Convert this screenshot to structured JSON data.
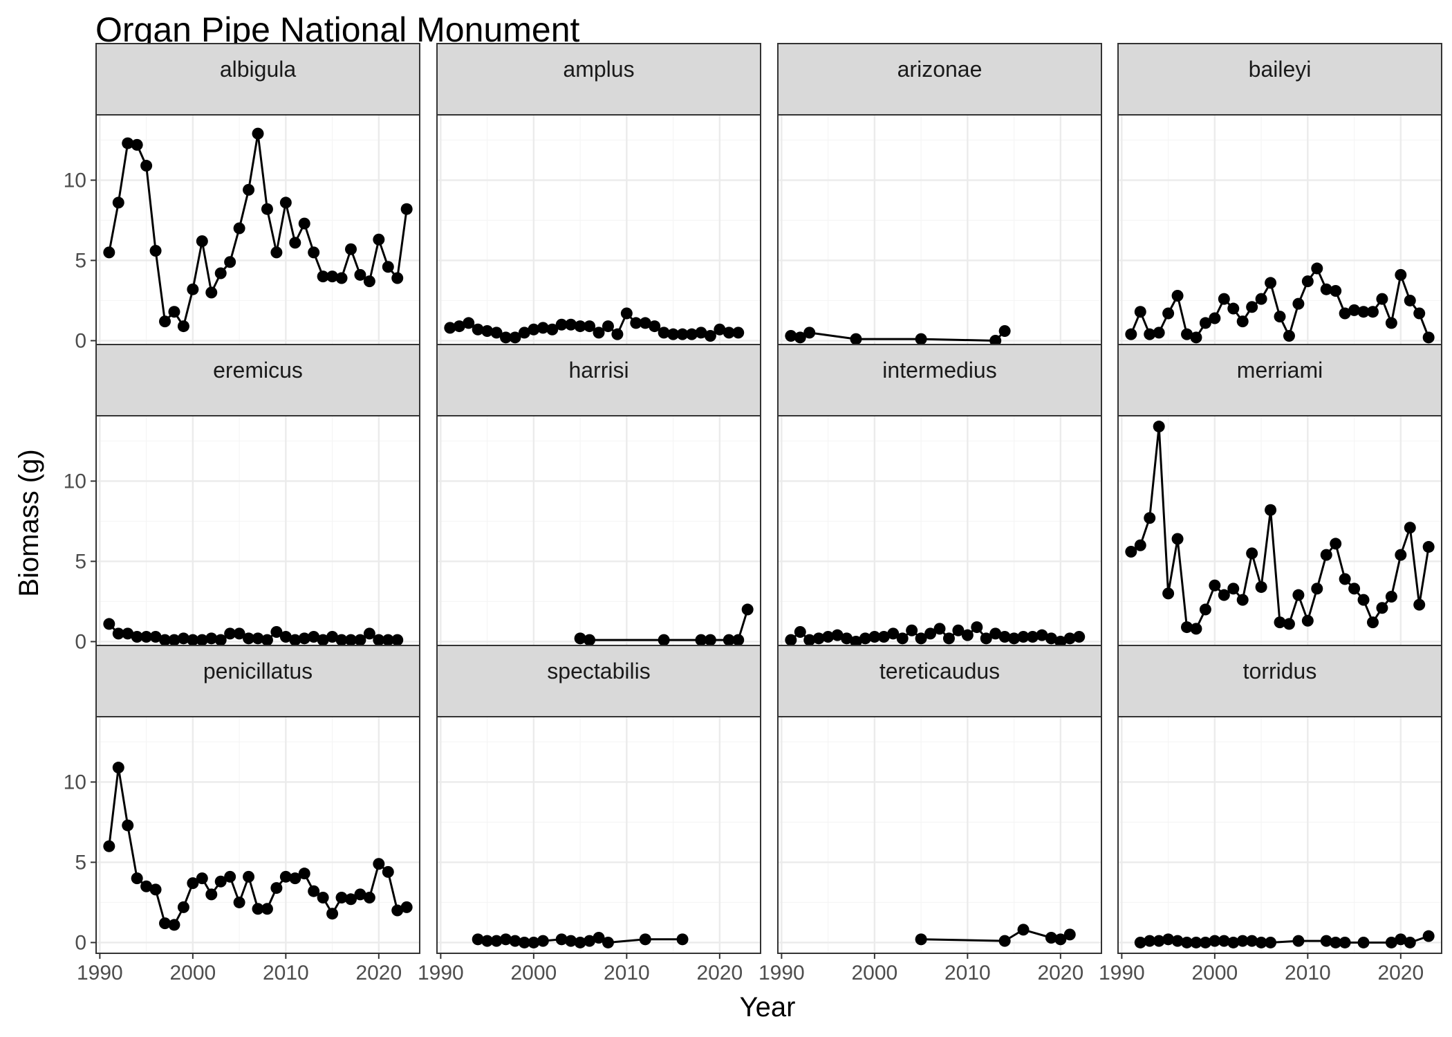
{
  "chart_data": {
    "type": "line",
    "title": "Organ Pipe National Monument",
    "xlabel": "Year",
    "ylabel": "Biomass (g)",
    "x_ticks": [
      1990,
      2000,
      2010,
      2020
    ],
    "y_ticks": [
      0,
      5,
      10
    ],
    "xlim": [
      1989.6,
      2024.4
    ],
    "ylim": [
      -0.67,
      14.07
    ],
    "grid": true,
    "markers": true,
    "colors": {
      "series": "#000000",
      "panel_border": "#333333",
      "strip_fill": "#d9d9d9",
      "grid_major": "#ebebeb",
      "grid_minor": "#f5f5f5",
      "tick_text": "#4d4d4d"
    },
    "facets": [
      {
        "name": "albigula",
        "x": [
          1991,
          1992,
          1993,
          1994,
          1995,
          1996,
          1997,
          1998,
          1999,
          2000,
          2001,
          2002,
          2003,
          2004,
          2005,
          2006,
          2007,
          2008,
          2009,
          2010,
          2011,
          2012,
          2013,
          2014,
          2015,
          2016,
          2017,
          2018,
          2019,
          2020,
          2021,
          2022,
          2023
        ],
        "y": [
          5.5,
          8.6,
          12.3,
          12.2,
          10.9,
          5.6,
          1.2,
          1.8,
          0.9,
          3.2,
          6.2,
          3.0,
          4.2,
          4.9,
          7.0,
          9.4,
          12.9,
          8.2,
          5.5,
          8.6,
          6.1,
          7.3,
          5.5,
          4.0,
          4.0,
          3.9,
          5.7,
          4.1,
          3.7,
          6.3,
          4.6,
          3.9,
          8.2
        ]
      },
      {
        "name": "amplus",
        "x": [
          1991,
          1992,
          1993,
          1994,
          1995,
          1996,
          1997,
          1998,
          1999,
          2000,
          2001,
          2002,
          2003,
          2004,
          2005,
          2006,
          2007,
          2008,
          2009,
          2010,
          2011,
          2012,
          2013,
          2014,
          2015,
          2016,
          2017,
          2018,
          2019,
          2020,
          2021,
          2022
        ],
        "y": [
          0.8,
          0.9,
          1.1,
          0.7,
          0.6,
          0.5,
          0.2,
          0.2,
          0.5,
          0.7,
          0.8,
          0.7,
          1.0,
          1.0,
          0.9,
          0.9,
          0.5,
          0.9,
          0.4,
          1.7,
          1.1,
          1.1,
          0.9,
          0.5,
          0.4,
          0.4,
          0.4,
          0.5,
          0.3,
          0.7,
          0.5,
          0.5
        ]
      },
      {
        "name": "arizonae",
        "x": [
          1991,
          1992,
          1993,
          1998,
          2005,
          2013,
          2014
        ],
        "y": [
          0.3,
          0.2,
          0.5,
          0.1,
          0.1,
          0.0,
          0.6
        ]
      },
      {
        "name": "baileyi",
        "x": [
          1991,
          1992,
          1993,
          1994,
          1995,
          1996,
          1997,
          1998,
          1999,
          2000,
          2001,
          2002,
          2003,
          2004,
          2005,
          2006,
          2007,
          2008,
          2009,
          2010,
          2011,
          2012,
          2013,
          2014,
          2015,
          2016,
          2017,
          2018,
          2019,
          2020,
          2021,
          2022,
          2023
        ],
        "y": [
          0.4,
          1.8,
          0.4,
          0.5,
          1.7,
          2.8,
          0.4,
          0.2,
          1.1,
          1.4,
          2.6,
          2.0,
          1.2,
          2.1,
          2.6,
          3.6,
          1.5,
          0.3,
          2.3,
          3.7,
          4.5,
          3.2,
          3.1,
          1.7,
          1.9,
          1.8,
          1.8,
          2.6,
          1.1,
          4.1,
          2.5,
          1.7,
          0.2
        ]
      },
      {
        "name": "eremicus",
        "x": [
          1991,
          1992,
          1993,
          1994,
          1995,
          1996,
          1997,
          1998,
          1999,
          2000,
          2001,
          2002,
          2003,
          2004,
          2005,
          2006,
          2007,
          2008,
          2009,
          2010,
          2011,
          2012,
          2013,
          2014,
          2015,
          2016,
          2017,
          2018,
          2019,
          2020,
          2021,
          2022
        ],
        "y": [
          1.1,
          0.5,
          0.5,
          0.3,
          0.3,
          0.3,
          0.1,
          0.1,
          0.2,
          0.1,
          0.1,
          0.2,
          0.1,
          0.5,
          0.5,
          0.2,
          0.2,
          0.1,
          0.6,
          0.3,
          0.1,
          0.2,
          0.3,
          0.1,
          0.3,
          0.1,
          0.1,
          0.1,
          0.5,
          0.1,
          0.1,
          0.1
        ]
      },
      {
        "name": "harrisi",
        "x": [
          2005,
          2006,
          2014,
          2018,
          2019,
          2021,
          2022,
          2023
        ],
        "y": [
          0.2,
          0.1,
          0.1,
          0.1,
          0.1,
          0.1,
          0.1,
          2.0
        ]
      },
      {
        "name": "intermedius",
        "x": [
          1991,
          1992,
          1993,
          1994,
          1995,
          1996,
          1997,
          1998,
          1999,
          2000,
          2001,
          2002,
          2003,
          2004,
          2005,
          2006,
          2007,
          2008,
          2009,
          2010,
          2011,
          2012,
          2013,
          2014,
          2015,
          2016,
          2017,
          2018,
          2019,
          2020,
          2021,
          2022
        ],
        "y": [
          0.1,
          0.6,
          0.1,
          0.2,
          0.3,
          0.4,
          0.2,
          0.0,
          0.2,
          0.3,
          0.3,
          0.5,
          0.2,
          0.7,
          0.2,
          0.5,
          0.8,
          0.2,
          0.7,
          0.4,
          0.9,
          0.2,
          0.5,
          0.3,
          0.2,
          0.3,
          0.3,
          0.4,
          0.2,
          0.0,
          0.2,
          0.3
        ]
      },
      {
        "name": "merriami",
        "x": [
          1991,
          1992,
          1993,
          1994,
          1995,
          1996,
          1997,
          1998,
          1999,
          2000,
          2001,
          2002,
          2003,
          2004,
          2005,
          2006,
          2007,
          2008,
          2009,
          2010,
          2011,
          2012,
          2013,
          2014,
          2015,
          2016,
          2017,
          2018,
          2019,
          2020,
          2021,
          2022,
          2023
        ],
        "y": [
          5.6,
          6.0,
          7.7,
          13.4,
          3.0,
          6.4,
          0.9,
          0.8,
          2.0,
          3.5,
          2.9,
          3.3,
          2.6,
          5.5,
          3.4,
          8.2,
          1.2,
          1.1,
          2.9,
          1.3,
          3.3,
          5.4,
          6.1,
          3.9,
          3.3,
          2.6,
          1.2,
          2.1,
          2.8,
          5.4,
          7.1,
          2.3,
          5.9
        ]
      },
      {
        "name": "penicillatus",
        "x": [
          1991,
          1992,
          1993,
          1994,
          1995,
          1996,
          1997,
          1998,
          1999,
          2000,
          2001,
          2002,
          2003,
          2004,
          2005,
          2006,
          2007,
          2008,
          2009,
          2010,
          2011,
          2012,
          2013,
          2014,
          2015,
          2016,
          2017,
          2018,
          2019,
          2020,
          2021,
          2022,
          2023
        ],
        "y": [
          6.0,
          10.9,
          7.3,
          4.0,
          3.5,
          3.3,
          1.2,
          1.1,
          2.2,
          3.7,
          4.0,
          3.0,
          3.8,
          4.1,
          2.5,
          4.1,
          2.1,
          2.1,
          3.4,
          4.1,
          4.0,
          4.3,
          3.2,
          2.8,
          1.8,
          2.8,
          2.7,
          3.0,
          2.8,
          4.9,
          4.4,
          2.0,
          2.2
        ]
      },
      {
        "name": "spectabilis",
        "x": [
          1994,
          1995,
          1996,
          1997,
          1998,
          1999,
          2000,
          2001,
          2003,
          2004,
          2005,
          2006,
          2007,
          2008,
          2012,
          2016
        ],
        "y": [
          0.2,
          0.1,
          0.1,
          0.2,
          0.1,
          0.0,
          0.0,
          0.1,
          0.2,
          0.1,
          0.0,
          0.1,
          0.3,
          0.0,
          0.2,
          0.2
        ]
      },
      {
        "name": "tereticaudus",
        "x": [
          2005,
          2014,
          2016,
          2019,
          2020,
          2021
        ],
        "y": [
          0.2,
          0.1,
          0.8,
          0.3,
          0.2,
          0.5
        ]
      },
      {
        "name": "torridus",
        "x": [
          1992,
          1993,
          1994,
          1995,
          1996,
          1997,
          1998,
          1999,
          2000,
          2001,
          2002,
          2003,
          2004,
          2005,
          2006,
          2009,
          2012,
          2013,
          2014,
          2016,
          2019,
          2020,
          2021,
          2023
        ],
        "y": [
          0.0,
          0.1,
          0.1,
          0.2,
          0.1,
          0.0,
          0.0,
          0.0,
          0.1,
          0.1,
          0.0,
          0.1,
          0.1,
          0.0,
          0.0,
          0.1,
          0.1,
          0.0,
          0.0,
          0.0,
          0.0,
          0.2,
          0.0,
          0.4
        ]
      }
    ]
  }
}
